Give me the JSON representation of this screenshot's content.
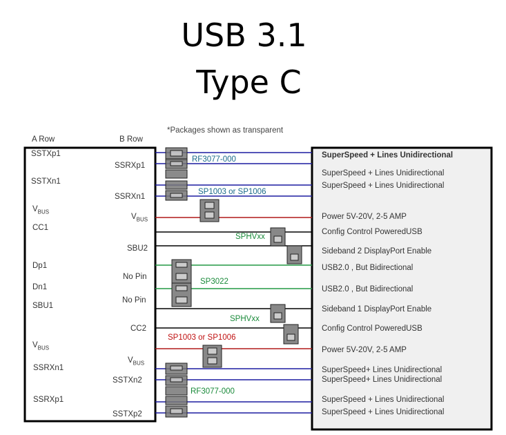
{
  "title": {
    "line1": "USB 3.1",
    "line2": "Type C"
  },
  "note": "*Packages shown as transparent",
  "headers": {
    "a_row": "A Row",
    "b_row": "B Row"
  },
  "a_pins": [
    "SSTXp1",
    "SSTXn1",
    "V",
    "CC1",
    "Dp1",
    "Dn1",
    "SBU1",
    "V",
    "SSRXn1",
    "SSRXp1"
  ],
  "b_pins": [
    "SSRXp1",
    "SSRXn1",
    "V",
    "SBU2",
    "No Pin",
    "No Pin",
    "CC2",
    "V",
    "SSTXn2",
    "SSTXp2"
  ],
  "bus_sub": "BUS",
  "descriptions": [
    "SuperSpeed + Lines Unidirectional",
    "SuperSpeed + Lines Unidirectional",
    "SuperSpeed + Lines Unidirectional",
    "Power 5V-20V, 2-5 AMP",
    "Config Control PoweredUSB",
    "Sideband 2 DisplayPort Enable",
    "USB2.0 , But Bidirectional",
    "USB2.0 , But Bidirectional",
    "Sideband 1 DisplayPort Enable",
    "Config Control PoweredUSB",
    "Power 5V-20V, 2-5 AMP",
    "SuperSpeed+ Lines Unidirectional",
    "SuperSpeed+ Lines Unidirectional",
    "SuperSpeed + Lines Unidirectional",
    "SuperSpeed + Lines Unidirectional"
  ],
  "parts": [
    "RF3077-000",
    "SP1003 or SP1006",
    "SPHVxx",
    "SP3022",
    "SPHVxx",
    "SP1003 or SP1006",
    "RF3077-000"
  ],
  "colors": {
    "blue": "#1c1ca0",
    "red": "#b01818",
    "green": "#229944",
    "black": "#000000",
    "part_blue": "#1a6a8a",
    "part_green": "#1a8a3a",
    "part_red": "#c01010"
  }
}
